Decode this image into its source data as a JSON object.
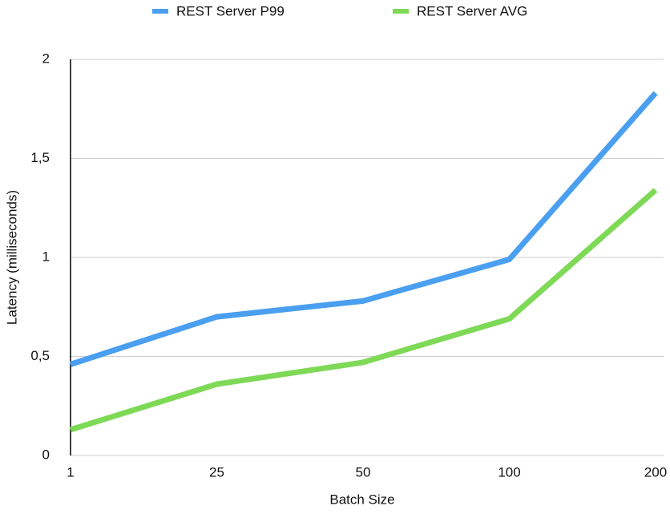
{
  "chart_data": {
    "type": "line",
    "x_label": "Batch Size",
    "y_label": "Latency (milliseconds)",
    "categories": [
      "1",
      "25",
      "50",
      "100",
      "200"
    ],
    "series": [
      {
        "name": "REST Server P99",
        "color": "#4a9ff0",
        "values": [
          0.46,
          0.7,
          0.78,
          0.99,
          1.83
        ]
      },
      {
        "name": "REST Server AVG",
        "color": "#7ed957",
        "values": [
          0.13,
          0.36,
          0.47,
          0.69,
          1.34
        ]
      }
    ],
    "ylim": [
      0,
      2
    ],
    "yticks": [
      0,
      {
        "value": 0.5,
        "label": "0,5"
      },
      1,
      {
        "value": 1.5,
        "label": "1,5"
      },
      2
    ],
    "grid": true,
    "legend": "top"
  }
}
